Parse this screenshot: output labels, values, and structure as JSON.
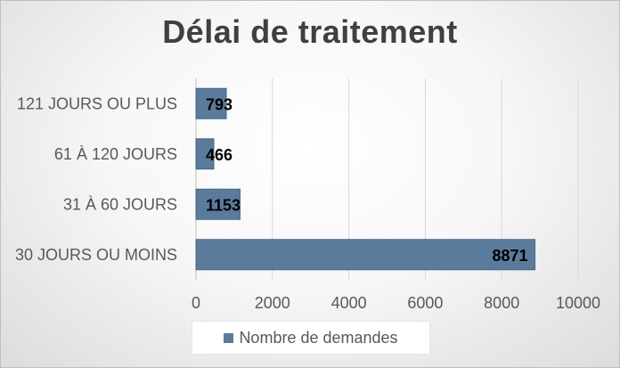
{
  "chart_data": {
    "type": "bar",
    "orientation": "horizontal",
    "title": "Délai de traitement",
    "categories": [
      "121 JOURS OU PLUS",
      "61 À 120 JOURS",
      "31 À 60 JOURS",
      "30 JOURS OU MOINS"
    ],
    "series": [
      {
        "name": "Nombre de demandes",
        "values": [
          793,
          466,
          1153,
          8871
        ],
        "color": "#5b7b9c"
      }
    ],
    "xlim": [
      0,
      10000
    ],
    "xticks": [
      0,
      2000,
      4000,
      6000,
      8000,
      10000
    ],
    "grid": "vertical",
    "legend_position": "bottom"
  }
}
